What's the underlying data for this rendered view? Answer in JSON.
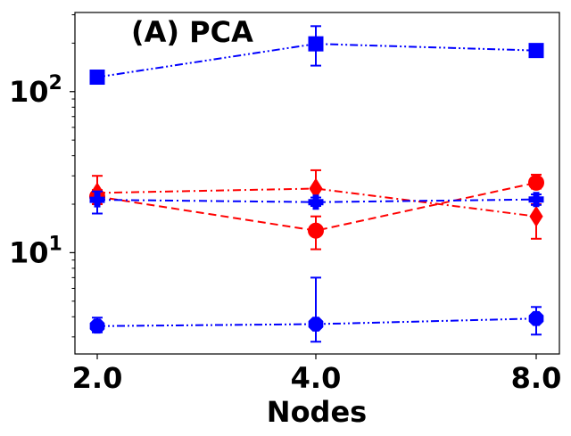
{
  "chart_data": {
    "type": "line",
    "title": "(A) PCA",
    "xlabel": "Nodes",
    "ylabel": "",
    "x_ticks": [
      "2.0",
      "4.0",
      "8.0"
    ],
    "y_scale": "log",
    "y_ticks": [
      {
        "value": 10,
        "base": "10",
        "exp": "1"
      },
      {
        "value": 100,
        "base": "10",
        "exp": "2"
      }
    ],
    "ylim": [
      2.35,
      310
    ],
    "grid": false,
    "series": [
      {
        "color": "#0000ff",
        "dash": "dashdotdot",
        "marker": "square",
        "values": [
          123,
          198,
          180
        ],
        "err_low": [
          120,
          145,
          178
        ],
        "err_high": [
          126,
          255,
          182
        ]
      },
      {
        "color": "#ff0000",
        "dash": "dashdot",
        "marker": "diamond",
        "values": [
          23.5,
          25,
          16.8
        ],
        "err_low": [
          20,
          20,
          12.2
        ],
        "err_high": [
          30,
          32.5,
          20
        ]
      },
      {
        "color": "#ff0000",
        "dash": "dashed",
        "marker": "circle",
        "values": [
          22.3,
          13.7,
          27.2
        ],
        "err_low": [
          20,
          10.5,
          25
        ],
        "err_high": [
          24.5,
          16.8,
          30.5
        ]
      },
      {
        "color": "#0000ff",
        "dash": "dashdot",
        "marker": "plus",
        "values": [
          21.3,
          20.6,
          21.4
        ],
        "err_low": [
          17.5,
          19.5,
          19.8
        ],
        "err_high": [
          24,
          22,
          23
        ]
      },
      {
        "color": "#0000ff",
        "dash": "dashdotdot",
        "marker": "octagon",
        "values": [
          3.5,
          3.6,
          3.9
        ],
        "err_low": [
          3.2,
          2.8,
          3.1
        ],
        "err_high": [
          3.95,
          7,
          4.6
        ]
      }
    ]
  }
}
